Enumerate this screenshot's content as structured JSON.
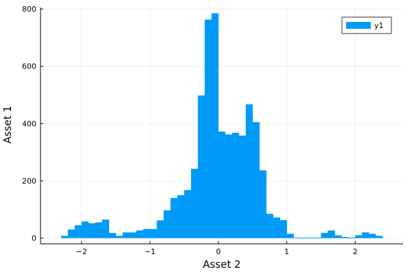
{
  "chart_data": {
    "type": "bar",
    "title": "",
    "xlabel": "Asset 2",
    "ylabel": "Asset 1",
    "xlim": [
      -2.6,
      2.7
    ],
    "ylim": [
      -20,
      805
    ],
    "xticks": [
      -2,
      -1,
      0,
      1,
      2
    ],
    "yticks": [
      0,
      200,
      400,
      600,
      800
    ],
    "grid": true,
    "legend_position": "top-right",
    "bar_color": "#009AF9",
    "bin_width": 0.1,
    "series": [
      {
        "name": "y1",
        "bin_start": [
          -2.3,
          -2.2,
          -2.1,
          -2.0,
          -1.9,
          -1.8,
          -1.7,
          -1.6,
          -1.5,
          -1.4,
          -1.3,
          -1.2,
          -1.1,
          -1.0,
          -0.9,
          -0.8,
          -0.7,
          -0.6,
          -0.5,
          -0.4,
          -0.3,
          -0.2,
          -0.1,
          0.0,
          0.1,
          0.2,
          0.3,
          0.4,
          0.5,
          0.6,
          0.7,
          0.8,
          0.9,
          1.0,
          1.1,
          1.2,
          1.3,
          1.4,
          1.5,
          1.6,
          1.7,
          1.8,
          1.9,
          2.0,
          2.1,
          2.2,
          2.3
        ],
        "values": [
          8,
          30,
          45,
          58,
          52,
          55,
          65,
          18,
          8,
          20,
          20,
          27,
          32,
          32,
          62,
          97,
          140,
          150,
          168,
          242,
          498,
          763,
          785,
          372,
          362,
          368,
          358,
          467,
          405,
          237,
          85,
          72,
          63,
          15,
          2,
          2,
          2,
          2,
          18,
          27,
          10,
          4,
          2,
          10,
          20,
          15,
          8
        ]
      }
    ]
  }
}
